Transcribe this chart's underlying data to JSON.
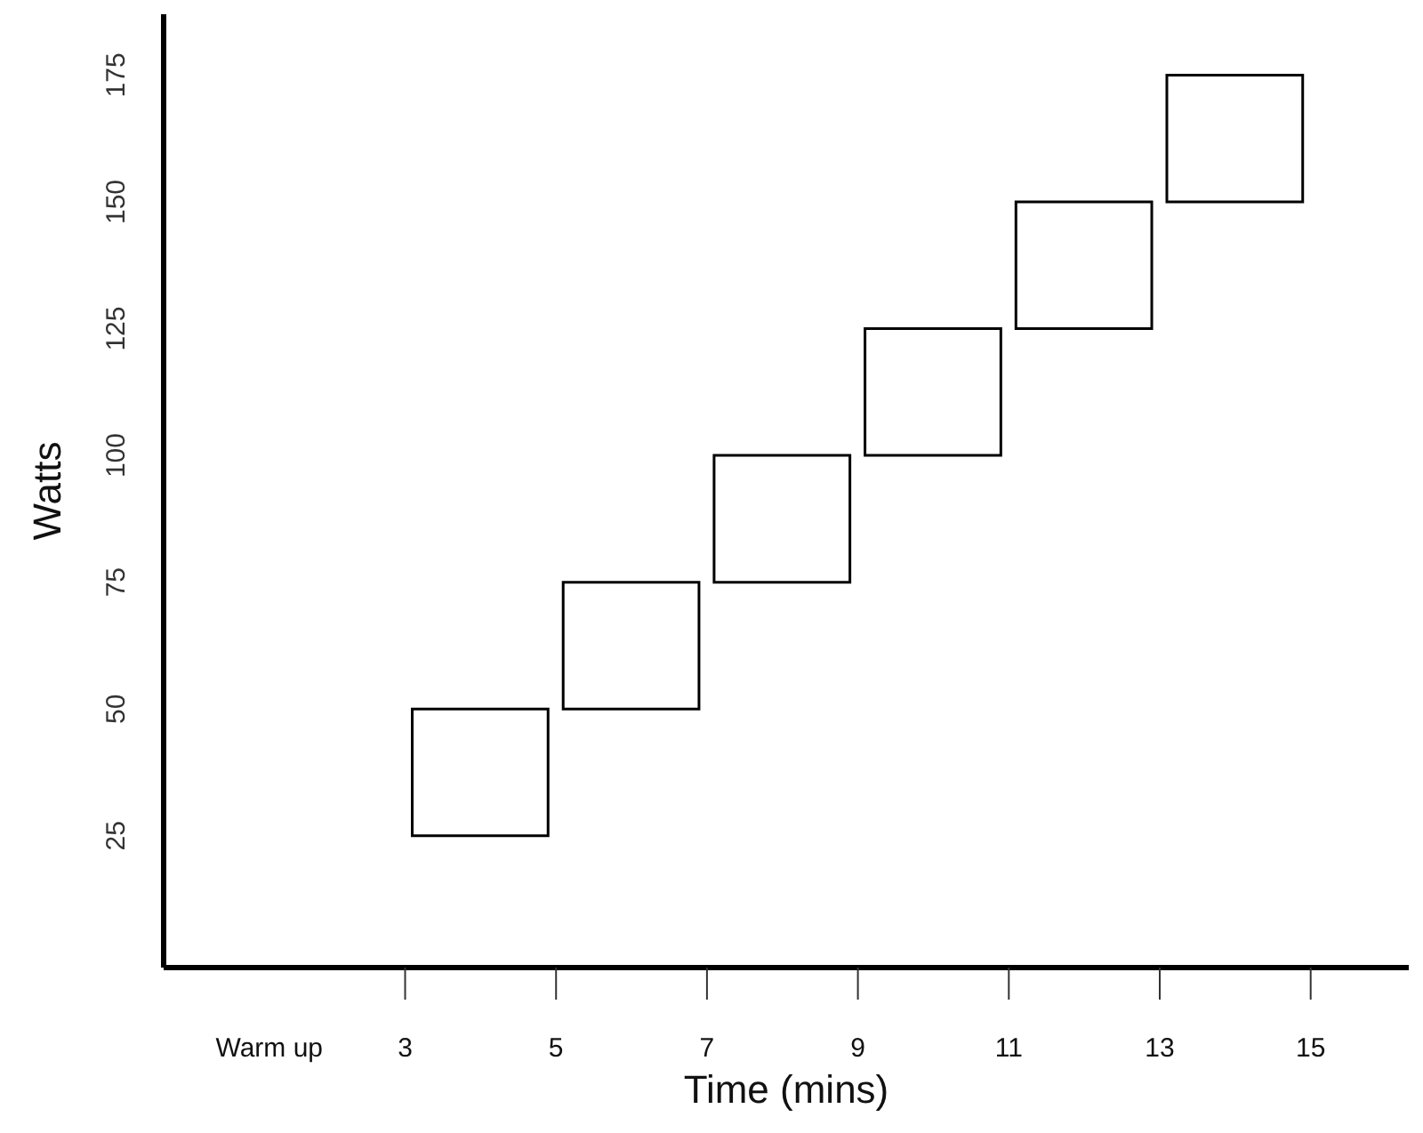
{
  "chart_data": {
    "type": "bar",
    "xlabel": "Time (mins)",
    "ylabel": "Watts",
    "x": [
      4,
      6,
      8,
      10,
      12,
      14
    ],
    "base": [
      25,
      50,
      75,
      100,
      125,
      150
    ],
    "values": [
      25,
      25,
      25,
      25,
      25,
      25
    ],
    "color": "#000000",
    "xlim": [
      -0.2,
      16.3
    ],
    "ylim": [
      -1,
      187
    ],
    "xticks": [
      {
        "value": 1.2,
        "label": "Warm up"
      },
      3,
      5,
      7,
      9,
      11,
      13,
      15
    ],
    "yticks": [
      25,
      50,
      75,
      100,
      125,
      150,
      175
    ],
    "grid": false,
    "legend": false
  }
}
